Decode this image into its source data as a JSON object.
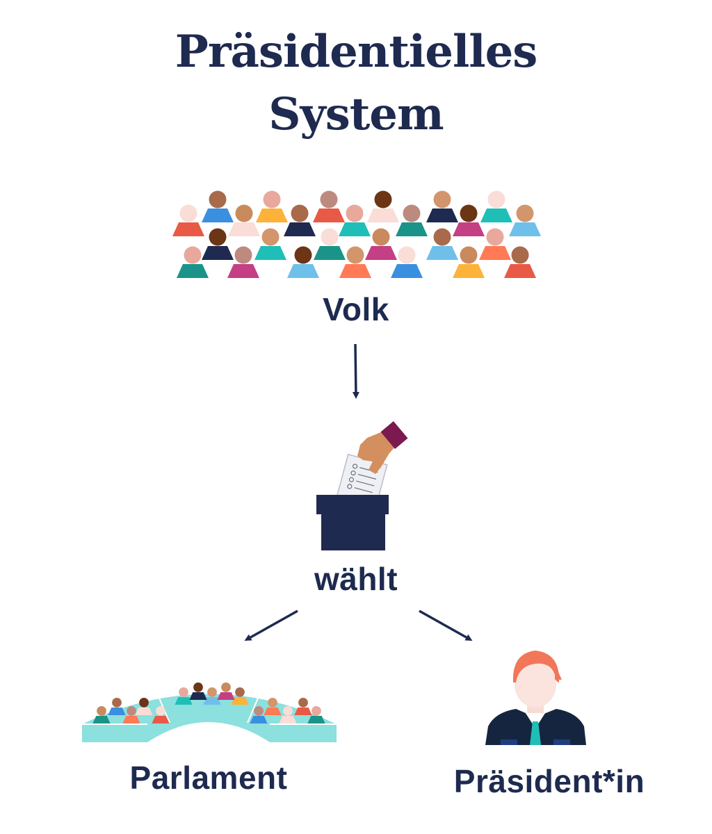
{
  "title": {
    "line1": "Präsidentielles",
    "line2": "System"
  },
  "nodes": {
    "volk": "Volk",
    "waehlt": "wählt",
    "parlament": "Parlament",
    "praesident": "Präsident*in"
  },
  "colors": {
    "text": "#1e2a4f",
    "arrow": "#1e2a4f",
    "ballot_box": "#1e2a4f",
    "parliament": "#8ce0de",
    "hair": "#f2775a"
  },
  "icons": {
    "crowd": "crowd-icon",
    "ballot": "ballot-box-icon",
    "parliament": "parliament-icon",
    "president": "president-icon"
  }
}
